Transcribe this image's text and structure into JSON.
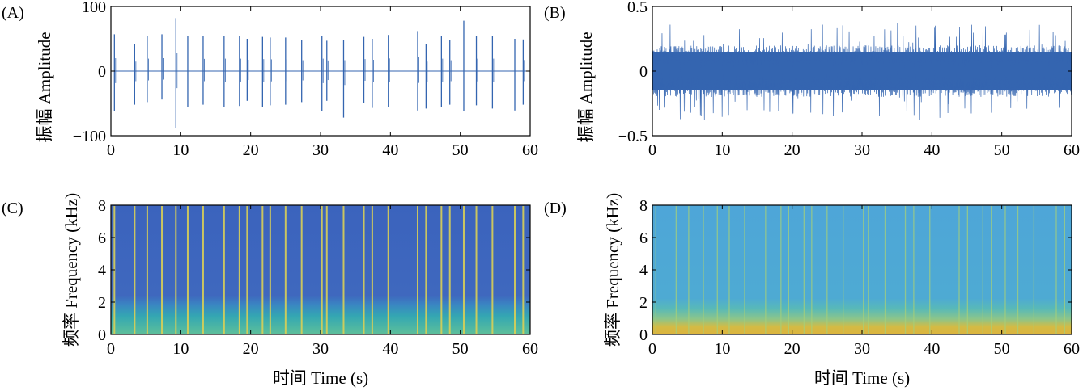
{
  "chart_data": [
    {
      "panel_label": "(A)",
      "type": "line",
      "ylabel": "振幅 Amplitude",
      "xlabel": "",
      "xlim": [
        0,
        60
      ],
      "ylim": [
        -100,
        100
      ],
      "xticks": [
        "0",
        "10",
        "20",
        "30",
        "40",
        "50",
        "60"
      ],
      "yticks": [
        "100",
        "0",
        "−100"
      ],
      "series_color": "#3465b0",
      "spikes": [
        {
          "t": 0.5,
          "up": 57,
          "down": -62
        },
        {
          "t": 3.4,
          "up": 42,
          "down": -52
        },
        {
          "t": 5.2,
          "up": 55,
          "down": -48
        },
        {
          "t": 7.3,
          "up": 57,
          "down": -44
        },
        {
          "t": 9.3,
          "up": 82,
          "down": -88
        },
        {
          "t": 11.0,
          "up": 55,
          "down": -56
        },
        {
          "t": 13.2,
          "up": 54,
          "down": -52
        },
        {
          "t": 16.2,
          "up": 55,
          "down": -56
        },
        {
          "t": 18.4,
          "up": 55,
          "down": -54
        },
        {
          "t": 19.5,
          "up": 50,
          "down": -46
        },
        {
          "t": 21.7,
          "up": 53,
          "down": -55
        },
        {
          "t": 22.8,
          "up": 52,
          "down": -53
        },
        {
          "t": 25.0,
          "up": 52,
          "down": -52
        },
        {
          "t": 27.3,
          "up": 48,
          "down": -48
        },
        {
          "t": 30.2,
          "up": 55,
          "down": -62
        },
        {
          "t": 30.9,
          "up": 47,
          "down": -46
        },
        {
          "t": 33.3,
          "up": 48,
          "down": -72
        },
        {
          "t": 36.2,
          "up": 53,
          "down": -50
        },
        {
          "t": 37.4,
          "up": 50,
          "down": -57
        },
        {
          "t": 39.7,
          "up": 56,
          "down": -55
        },
        {
          "t": 43.9,
          "up": 62,
          "down": -61
        },
        {
          "t": 45.1,
          "up": 42,
          "down": -58
        },
        {
          "t": 47.3,
          "up": 55,
          "down": -56
        },
        {
          "t": 48.5,
          "up": 48,
          "down": -52
        },
        {
          "t": 50.5,
          "up": 78,
          "down": -62
        },
        {
          "t": 52.3,
          "up": 55,
          "down": -53
        },
        {
          "t": 54.6,
          "up": 55,
          "down": -58
        },
        {
          "t": 57.8,
          "up": 50,
          "down": -61
        },
        {
          "t": 59.0,
          "up": 49,
          "down": -52
        }
      ]
    },
    {
      "panel_label": "(B)",
      "type": "line",
      "ylabel": "振幅 Amplitude",
      "xlabel": "",
      "xlim": [
        0,
        60
      ],
      "ylim": [
        -0.5,
        0.5
      ],
      "xticks": [
        "0",
        "10",
        "20",
        "30",
        "40",
        "50",
        "60"
      ],
      "yticks": [
        "0.5",
        "0",
        "−0.5"
      ],
      "series_color": "#3465b0",
      "envelope": {
        "base": 0.2,
        "peak": 0.38
      }
    },
    {
      "panel_label": "(C)",
      "type": "heatmap",
      "ylabel": "频率 Frequency (kHz)",
      "xlabel": "时间 Time (s)",
      "xlim": [
        0,
        60
      ],
      "ylim": [
        0,
        8
      ],
      "xticks": [
        "0",
        "10",
        "20",
        "30",
        "40",
        "50",
        "60"
      ],
      "yticks": [
        "0",
        "2",
        "4",
        "6",
        "8"
      ],
      "colors": {
        "background": "#3d64bb",
        "low_band": "#33a6b0",
        "bottom": "#5ec09a",
        "event": "#d9cf55"
      },
      "event_times": [
        0.5,
        3.4,
        5.2,
        7.3,
        9.3,
        11.0,
        13.2,
        16.2,
        18.4,
        19.5,
        21.7,
        22.8,
        25.0,
        27.3,
        30.2,
        30.9,
        33.3,
        36.2,
        37.4,
        39.7,
        43.9,
        45.1,
        47.3,
        48.5,
        50.5,
        52.3,
        54.6,
        57.8,
        59.0
      ]
    },
    {
      "panel_label": "(D)",
      "type": "heatmap",
      "ylabel": "频率 Frequency (kHz)",
      "xlabel": "时间 Time (s)",
      "xlim": [
        0,
        60
      ],
      "ylim": [
        0,
        8
      ],
      "xticks": [
        "0",
        "10",
        "20",
        "30",
        "40",
        "50",
        "60"
      ],
      "yticks": [
        "0",
        "2",
        "4",
        "6",
        "8"
      ],
      "colors": {
        "background": "#4da7d6",
        "low_band": "#6cc098",
        "bottom": "#d9b83f",
        "event": "#a6cf7a"
      },
      "event_times": [
        0.5,
        3.4,
        5.2,
        7.3,
        9.3,
        11.0,
        13.2,
        16.2,
        18.4,
        19.5,
        21.7,
        22.8,
        25.0,
        27.3,
        30.2,
        30.9,
        33.3,
        36.2,
        37.4,
        39.7,
        43.9,
        45.1,
        47.3,
        48.5,
        50.5,
        52.3,
        54.6,
        57.8,
        59.0
      ]
    }
  ]
}
